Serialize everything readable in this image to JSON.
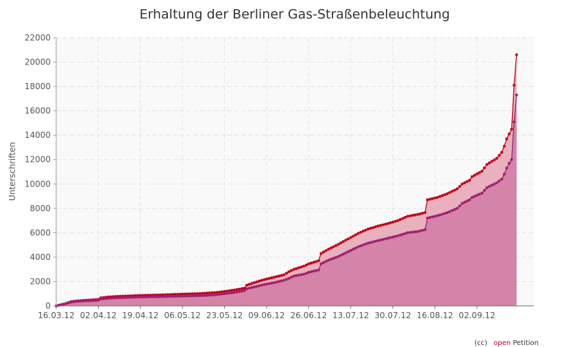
{
  "chart_data": {
    "type": "area",
    "title": "Erhaltung der Berliner Gas-Straßenbeleuchtung",
    "xlabel": "",
    "ylabel": "Unterschriften",
    "x_start": "2012-03-16",
    "x_end": "2012-09-25",
    "x_tick_labels": [
      "16.03.12",
      "02.04.12",
      "19.04.12",
      "06.05.12",
      "23.05.12",
      "09.06.12",
      "26.06.12",
      "13.07.12",
      "30.07.12",
      "16.08.12",
      "02.09.12"
    ],
    "x_tick_dates": [
      "2012-03-16",
      "2012-04-02",
      "2012-04-19",
      "2012-05-06",
      "2012-05-23",
      "2012-06-09",
      "2012-06-26",
      "2012-07-13",
      "2012-07-30",
      "2012-08-16",
      "2012-09-02"
    ],
    "ylim": [
      0,
      22000
    ],
    "y_ticks": [
      0,
      2000,
      4000,
      6000,
      8000,
      10000,
      12000,
      14000,
      16000,
      18000,
      20000,
      22000
    ],
    "grid": true,
    "series": [
      {
        "color": "#c0001a",
        "fill": "#e9b1bd",
        "points": [
          [
            "2012-03-16",
            0
          ],
          [
            "2012-03-18",
            100
          ],
          [
            "2012-03-20",
            200
          ],
          [
            "2012-03-22",
            350
          ],
          [
            "2012-03-24",
            400
          ],
          [
            "2012-03-27",
            450
          ],
          [
            "2012-03-31",
            500
          ],
          [
            "2012-04-02",
            530
          ],
          [
            "2012-04-03",
            650
          ],
          [
            "2012-04-06",
            730
          ],
          [
            "2012-04-10",
            780
          ],
          [
            "2012-04-15",
            820
          ],
          [
            "2012-04-20",
            860
          ],
          [
            "2012-04-25",
            890
          ],
          [
            "2012-04-30",
            920
          ],
          [
            "2012-05-04",
            950
          ],
          [
            "2012-05-08",
            980
          ],
          [
            "2012-05-12",
            1000
          ],
          [
            "2012-05-16",
            1050
          ],
          [
            "2012-05-20",
            1100
          ],
          [
            "2012-05-23",
            1180
          ],
          [
            "2012-05-27",
            1300
          ],
          [
            "2012-05-31",
            1450
          ],
          [
            "2012-06-01",
            1700
          ],
          [
            "2012-06-04",
            1900
          ],
          [
            "2012-06-08",
            2150
          ],
          [
            "2012-06-12",
            2350
          ],
          [
            "2012-06-16",
            2550
          ],
          [
            "2012-06-18",
            2800
          ],
          [
            "2012-06-20",
            3000
          ],
          [
            "2012-06-24",
            3250
          ],
          [
            "2012-06-26",
            3450
          ],
          [
            "2012-06-30",
            3700
          ],
          [
            "2012-07-01",
            4300
          ],
          [
            "2012-07-04",
            4650
          ],
          [
            "2012-07-08",
            5050
          ],
          [
            "2012-07-12",
            5500
          ],
          [
            "2012-07-16",
            5950
          ],
          [
            "2012-07-20",
            6300
          ],
          [
            "2012-07-24",
            6550
          ],
          [
            "2012-07-28",
            6750
          ],
          [
            "2012-08-01",
            7000
          ],
          [
            "2012-08-05",
            7350
          ],
          [
            "2012-08-09",
            7500
          ],
          [
            "2012-08-12",
            7650
          ],
          [
            "2012-08-13",
            8700
          ],
          [
            "2012-08-17",
            8900
          ],
          [
            "2012-08-21",
            9200
          ],
          [
            "2012-08-25",
            9600
          ],
          [
            "2012-08-27",
            10000
          ],
          [
            "2012-08-30",
            10300
          ],
          [
            "2012-08-31",
            10600
          ],
          [
            "2012-09-04",
            11050
          ],
          [
            "2012-09-06",
            11600
          ],
          [
            "2012-09-10",
            12100
          ],
          [
            "2012-09-12",
            12600
          ],
          [
            "2012-09-13",
            13100
          ],
          [
            "2012-09-14",
            13700
          ],
          [
            "2012-09-15",
            14100
          ],
          [
            "2012-09-16",
            14500
          ],
          [
            "2012-09-17",
            18100
          ],
          [
            "2012-09-18",
            20600
          ]
        ]
      },
      {
        "color": "#a0206e",
        "fill": "#d384a8",
        "points": [
          [
            "2012-03-16",
            0
          ],
          [
            "2012-03-18",
            90
          ],
          [
            "2012-03-20",
            180
          ],
          [
            "2012-03-22",
            300
          ],
          [
            "2012-03-24",
            360
          ],
          [
            "2012-03-27",
            400
          ],
          [
            "2012-03-31",
            430
          ],
          [
            "2012-04-02",
            460
          ],
          [
            "2012-04-03",
            560
          ],
          [
            "2012-04-06",
            620
          ],
          [
            "2012-04-10",
            660
          ],
          [
            "2012-04-15",
            700
          ],
          [
            "2012-04-20",
            730
          ],
          [
            "2012-04-25",
            750
          ],
          [
            "2012-04-30",
            770
          ],
          [
            "2012-05-04",
            790
          ],
          [
            "2012-05-08",
            810
          ],
          [
            "2012-05-12",
            830
          ],
          [
            "2012-05-16",
            860
          ],
          [
            "2012-05-20",
            920
          ],
          [
            "2012-05-23",
            1000
          ],
          [
            "2012-05-27",
            1100
          ],
          [
            "2012-05-31",
            1250
          ],
          [
            "2012-06-01",
            1400
          ],
          [
            "2012-06-04",
            1550
          ],
          [
            "2012-06-08",
            1750
          ],
          [
            "2012-06-12",
            1900
          ],
          [
            "2012-06-16",
            2100
          ],
          [
            "2012-06-18",
            2250
          ],
          [
            "2012-06-20",
            2450
          ],
          [
            "2012-06-24",
            2600
          ],
          [
            "2012-06-26",
            2750
          ],
          [
            "2012-06-30",
            2950
          ],
          [
            "2012-07-01",
            3450
          ],
          [
            "2012-07-04",
            3750
          ],
          [
            "2012-07-08",
            4050
          ],
          [
            "2012-07-12",
            4450
          ],
          [
            "2012-07-16",
            4850
          ],
          [
            "2012-07-20",
            5150
          ],
          [
            "2012-07-24",
            5350
          ],
          [
            "2012-07-28",
            5550
          ],
          [
            "2012-08-01",
            5750
          ],
          [
            "2012-08-05",
            6000
          ],
          [
            "2012-08-09",
            6100
          ],
          [
            "2012-08-12",
            6250
          ],
          [
            "2012-08-13",
            7200
          ],
          [
            "2012-08-17",
            7400
          ],
          [
            "2012-08-21",
            7650
          ],
          [
            "2012-08-25",
            8000
          ],
          [
            "2012-08-27",
            8400
          ],
          [
            "2012-08-30",
            8700
          ],
          [
            "2012-08-31",
            8900
          ],
          [
            "2012-09-04",
            9250
          ],
          [
            "2012-09-06",
            9700
          ],
          [
            "2012-09-10",
            10100
          ],
          [
            "2012-09-12",
            10400
          ],
          [
            "2012-09-13",
            10800
          ],
          [
            "2012-09-14",
            11300
          ],
          [
            "2012-09-15",
            11700
          ],
          [
            "2012-09-16",
            12000
          ],
          [
            "2012-09-17",
            15100
          ],
          [
            "2012-09-18",
            17300
          ]
        ]
      }
    ]
  },
  "credit": {
    "cc": "(cc)",
    "open": "open",
    "petition": "Petition"
  }
}
